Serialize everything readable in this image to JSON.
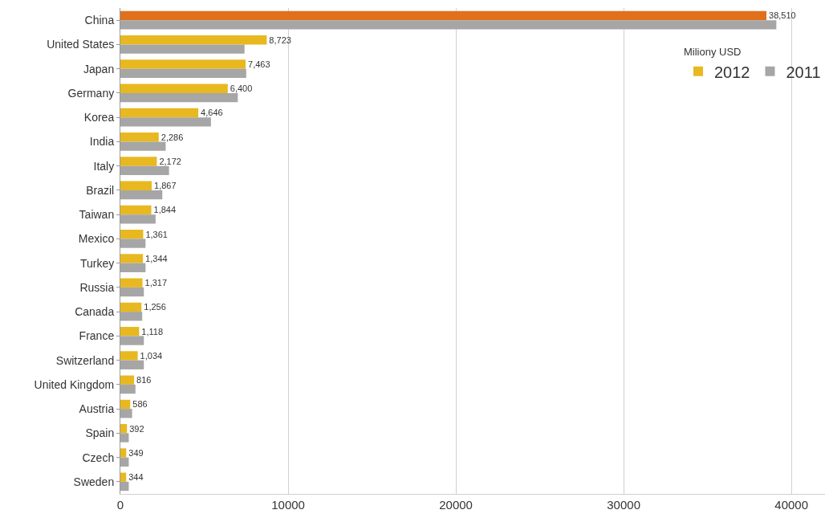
{
  "chart_data": {
    "type": "bar",
    "orientation": "horizontal",
    "legend_title": "Miliony USD",
    "legend": "top right",
    "grid": "x",
    "categories": [
      "China",
      "United States",
      "Japan",
      "Germany",
      "Korea",
      "India",
      "Italy",
      "Brazil",
      "Taiwan",
      "Mexico",
      "Turkey",
      "Russia",
      "Canada",
      "France",
      "Switzerland",
      "United Kingdom",
      "Austria",
      "Spain",
      "Czech",
      "Sweden"
    ],
    "series": [
      {
        "name": "2012",
        "color": "#e8b820",
        "colors": [
          "#e0701c",
          "#e8b820",
          "#e8b820",
          "#e8b820",
          "#e8b820",
          "#e8b820",
          "#e8b820",
          "#e8b820",
          "#e8b820",
          "#e8b820",
          "#e8b820",
          "#e8b820",
          "#e8b820",
          "#e8b820",
          "#e8b820",
          "#e8b820",
          "#e8b820",
          "#e8b820",
          "#e8b820",
          "#e8b820"
        ],
        "values": [
          38510,
          8723,
          7463,
          6400,
          4646,
          2286,
          2172,
          1867,
          1844,
          1361,
          1344,
          1317,
          1256,
          1118,
          1034,
          816,
          586,
          392,
          349,
          344
        ],
        "value_labels": [
          "38,510",
          "8,723",
          "7,463",
          "6,400",
          "4,646",
          "2,286",
          "2,172",
          "1,867",
          "1,844",
          "1,361",
          "1,344",
          "1,317",
          "1,256",
          "1,118",
          "1,034",
          "816",
          "586",
          "392",
          "349",
          "344"
        ]
      },
      {
        "name": "2011",
        "color": "#a6a6a6",
        "values": [
          39100,
          7400,
          7500,
          7000,
          5400,
          2700,
          2900,
          2500,
          2100,
          1500,
          1500,
          1400,
          1300,
          1400,
          1400,
          900,
          700,
          500,
          500,
          500
        ]
      }
    ],
    "xlim": [
      0,
      42000
    ],
    "xticks": [
      0,
      10000,
      20000,
      30000,
      40000
    ]
  }
}
